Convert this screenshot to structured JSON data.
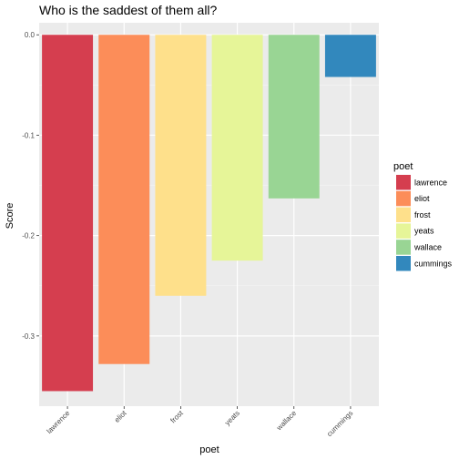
{
  "chart_data": {
    "type": "bar",
    "title": "Who is the saddest of them all?",
    "xlabel": "poet",
    "ylabel": "Score",
    "categories": [
      "lawrence",
      "eliot",
      "frost",
      "yeats",
      "wallace",
      "cummings"
    ],
    "values": [
      -0.355,
      -0.328,
      -0.26,
      -0.225,
      -0.163,
      -0.042
    ],
    "colors": [
      "#d53e4f",
      "#fc8d59",
      "#fee08b",
      "#e6f598",
      "#99d594",
      "#3288bd"
    ],
    "ylim": [
      -0.37,
      0.012
    ],
    "yticks": [
      0.0,
      -0.1,
      -0.2,
      -0.3
    ],
    "ytick_labels": [
      "0.0",
      "-0.1",
      "-0.2",
      "-0.3"
    ],
    "grid": true,
    "legend": {
      "title": "poet",
      "placement": "right",
      "entries": [
        "lawrence",
        "eliot",
        "frost",
        "yeats",
        "wallace",
        "cummings"
      ]
    }
  }
}
